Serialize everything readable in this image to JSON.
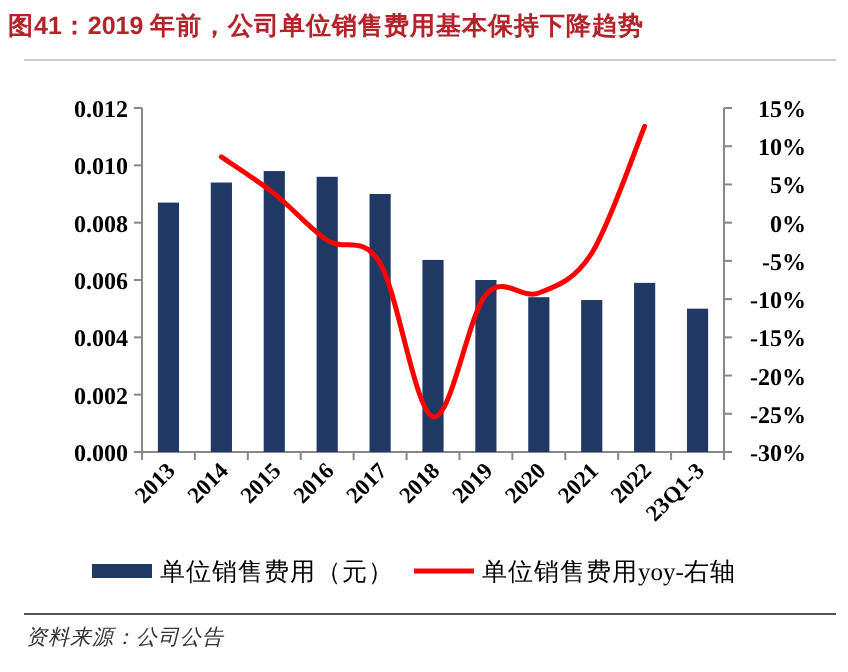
{
  "chart_data": {
    "type": "bar",
    "title": "图41：2019 年前，公司单位销售费用基本保持下降趋势",
    "categories": [
      "2013",
      "2014",
      "2015",
      "2016",
      "2017",
      "2018",
      "2019",
      "2020",
      "2021",
      "2022",
      "23Q1-3"
    ],
    "series": [
      {
        "name": "单位销售费用（元）",
        "color": "#1f3864",
        "values": [
          0.0087,
          0.0094,
          0.0098,
          0.0096,
          0.009,
          0.0067,
          0.006,
          0.0054,
          0.0053,
          0.0059,
          0.005
        ]
      },
      {
        "name": "单位销售费用yoy-右轴",
        "type": "line",
        "axis": "y2",
        "color": "#ff0000",
        "values": [
          null,
          8.6,
          3.8,
          -2.3,
          -5.3,
          -25.4,
          -9.4,
          -9.2,
          -4.0,
          12.6,
          null
        ]
      }
    ],
    "ylim": [
      0,
      0.012
    ],
    "yticks": [
      {
        "value": 0,
        "label": "0.000"
      },
      {
        "value": 0.002,
        "label": "0.002"
      },
      {
        "value": 0.004,
        "label": "0.004"
      },
      {
        "value": 0.006,
        "label": "0.006"
      },
      {
        "value": 0.008,
        "label": "0.008"
      },
      {
        "value": 0.01,
        "label": "0.010"
      },
      {
        "value": 0.012,
        "label": "0.012"
      }
    ],
    "y2lim": [
      -30,
      15
    ],
    "y2ticks": [
      {
        "value": -30,
        "label": "-30%"
      },
      {
        "value": -25,
        "label": "-25%"
      },
      {
        "value": -20,
        "label": "-20%"
      },
      {
        "value": -15,
        "label": "-15%"
      },
      {
        "value": -10,
        "label": "-10%"
      },
      {
        "value": -5,
        "label": "-5%"
      },
      {
        "value": 0,
        "label": "0%"
      },
      {
        "value": 5,
        "label": "5%"
      },
      {
        "value": 10,
        "label": "10%"
      },
      {
        "value": 15,
        "label": "15%"
      }
    ],
    "legend": "bottom",
    "annotations": [
      "资料来源：公司公告"
    ]
  }
}
